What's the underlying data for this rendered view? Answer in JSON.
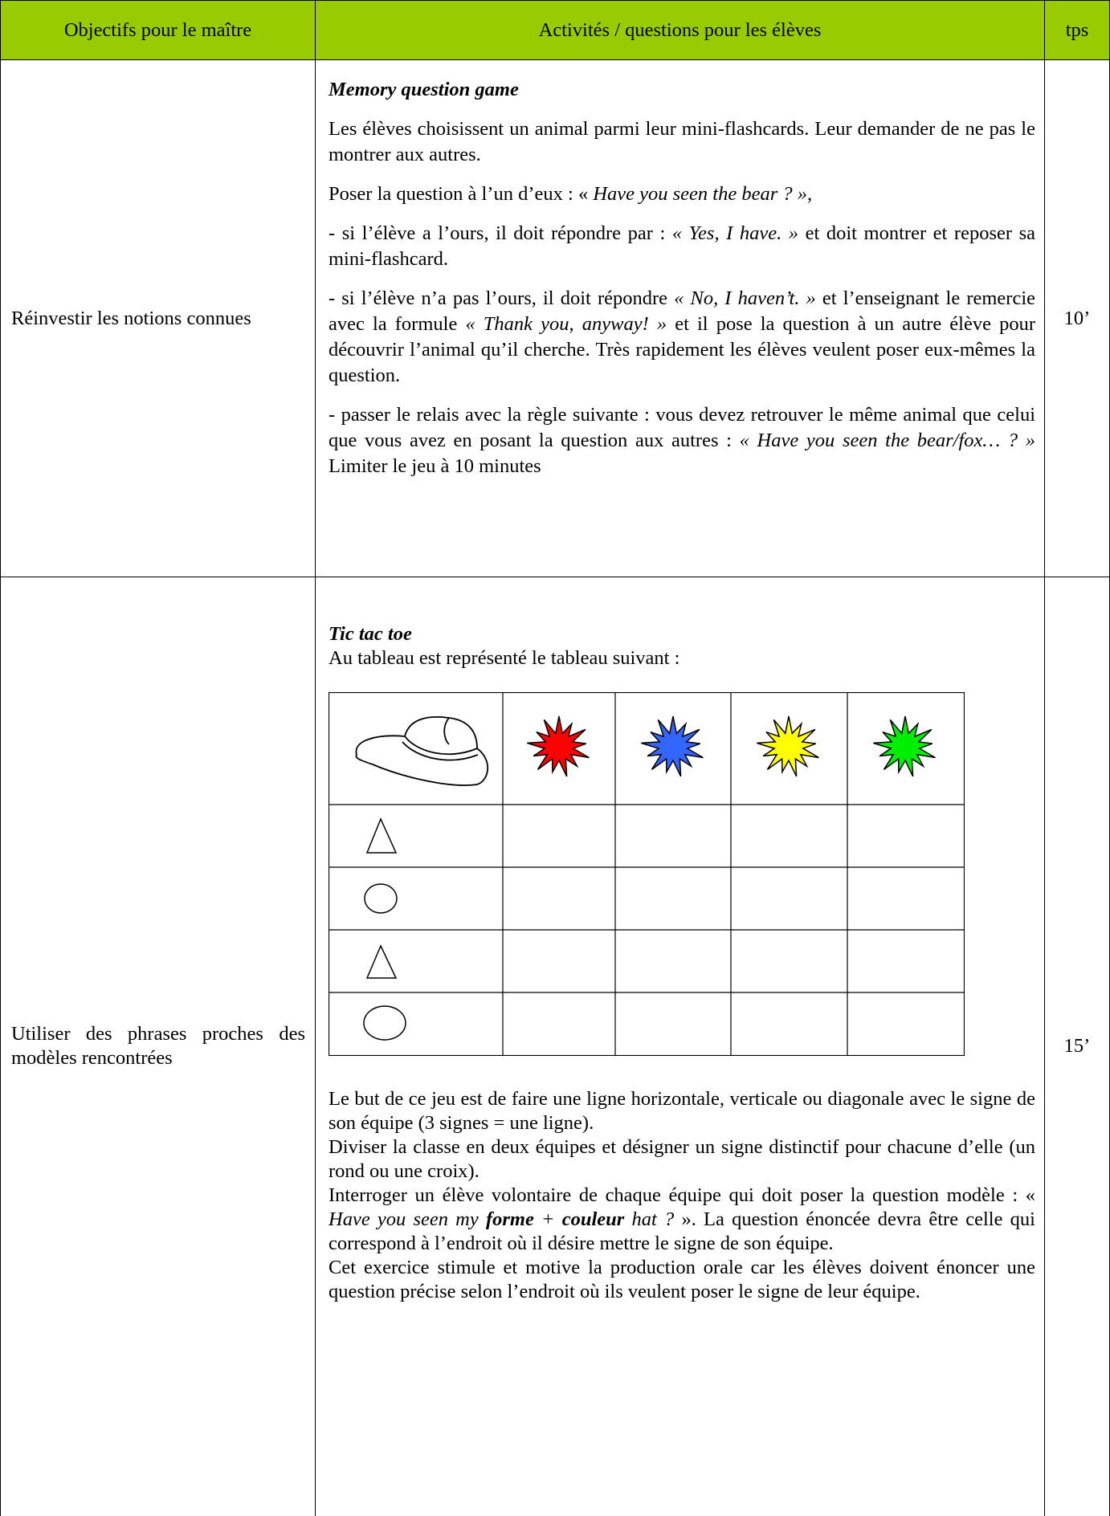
{
  "header": [
    "Objectifs pour le maître",
    "Activités / questions pour les élèves",
    "tps"
  ],
  "rows": [
    {
      "objective": "Réinvestir les notions connues",
      "time": "10’",
      "title": "Memory question game",
      "paragraphs": [
        [
          "Les élèves choisissent un animal parmi leur mini-flashcards. Leur demander de ne pas le montrer aux autres."
        ],
        [
          "Poser la question à l’un  d’eux : « ",
          "Have you seen the bear ? »",
          ","
        ],
        [
          "- si l’élève a l’ours, il doit répondre par : ",
          "« Yes, I have. »",
          " et doit montrer et reposer sa mini-flashcard."
        ],
        [
          "- si l’élève n’a pas l’ours, il doit répondre ",
          "« No, I haven’t. »",
          " et l’enseignant le remercie avec la formule ",
          "« Thank you, anyway! »",
          " et il pose la question à un autre élève pour découvrir l’animal qu’il cherche. Très rapidement les élèves veulent poser eux-mêmes la question."
        ],
        [
          "- passer le relais avec la règle suivante : vous devez retrouver le même animal que celui que vous avez en posant la question aux autres : ",
          "« Have you seen the bear/fox… ? »",
          " Limiter le jeu à 10 minutes"
        ]
      ]
    },
    {
      "objective": "Utiliser des phrases proches des modèles rencontrées",
      "time": "15’",
      "title": "Tic tac toe",
      "intro": "Au tableau est représenté le tableau suivant :",
      "paragraphs": [
        [
          "Le but de ce jeu est de faire une ligne horizontale, verticale ou diagonale avec le signe de son équipe (3 signes = une ligne)."
        ],
        [
          "Diviser la classe en deux équipes et désigner un signe distinctif pour chacune d’elle (un rond ou une croix)."
        ],
        [
          "Interroger un élève volontaire de chaque équipe qui doit poser la question modèle : « ",
          "Have you seen my ",
          "forme",
          " + ",
          "couleur",
          " hat ?",
          " ». La question énoncée devra être celle qui correspond à l’endroit où il désire mettre le signe de son équipe."
        ],
        [
          "Cet exercice stimule et motive la production orale car les élèves doivent énoncer une question précise selon l’endroit où ils veulent poser le signe de leur équipe."
        ]
      ]
    }
  ]
}
